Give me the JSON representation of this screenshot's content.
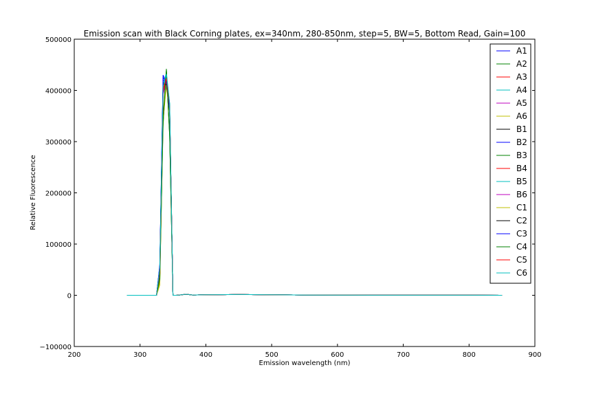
{
  "chart_data": {
    "type": "line",
    "title": "Emission scan with Black Corning plates, ex=340nm, 280-850nm, step=5, BW=5, Bottom Read, Gain=100",
    "xlabel": "Emission wavelength (nm)",
    "ylabel": "Relative Fluorescence",
    "xlim": [
      200,
      900
    ],
    "ylim": [
      -100000,
      500000
    ],
    "xticks": [
      200,
      300,
      400,
      500,
      600,
      700,
      800,
      900
    ],
    "yticks": [
      -100000,
      0,
      100000,
      200000,
      300000,
      400000,
      500000
    ],
    "grid": false,
    "legend_position": "top-right",
    "x": [
      280,
      325,
      330,
      335,
      340,
      345,
      350,
      355,
      360,
      370,
      380,
      400,
      450,
      500,
      550,
      600,
      650,
      700,
      750,
      800,
      850
    ],
    "series": [
      {
        "name": "A1",
        "color": "#0000ff",
        "values": [
          0,
          0,
          60000,
          430000,
          415000,
          360000,
          0,
          0,
          500,
          2000,
          500,
          1000,
          1500,
          1000,
          500,
          300,
          200,
          200,
          100,
          100,
          0
        ]
      },
      {
        "name": "A2",
        "color": "#008000",
        "values": [
          0,
          0,
          30000,
          330000,
          440000,
          310000,
          0,
          0,
          500,
          2000,
          500,
          1000,
          1500,
          1000,
          500,
          300,
          200,
          200,
          100,
          100,
          0
        ]
      },
      {
        "name": "A3",
        "color": "#ff0000",
        "values": [
          0,
          0,
          50000,
          400000,
          425000,
          370000,
          0,
          0,
          500,
          2000,
          500,
          1000,
          1500,
          1000,
          500,
          300,
          200,
          200,
          100,
          100,
          0
        ]
      },
      {
        "name": "A4",
        "color": "#00bfbf",
        "values": [
          0,
          0,
          55000,
          410000,
          435000,
          375000,
          0,
          0,
          500,
          2000,
          500,
          1000,
          1500,
          1000,
          500,
          300,
          200,
          200,
          100,
          100,
          0
        ]
      },
      {
        "name": "A5",
        "color": "#bf00bf",
        "values": [
          0,
          0,
          45000,
          395000,
          420000,
          365000,
          0,
          0,
          500,
          2000,
          500,
          1000,
          1500,
          1000,
          500,
          300,
          200,
          200,
          100,
          100,
          0
        ]
      },
      {
        "name": "A6",
        "color": "#bfbf00",
        "values": [
          0,
          0,
          20000,
          340000,
          410000,
          355000,
          0,
          0,
          500,
          2000,
          500,
          1000,
          1500,
          1000,
          500,
          300,
          200,
          200,
          100,
          100,
          0
        ]
      },
      {
        "name": "B1",
        "color": "#000000",
        "values": [
          0,
          0,
          52000,
          415000,
          410000,
          365000,
          0,
          0,
          500,
          2000,
          500,
          1000,
          1500,
          1000,
          500,
          300,
          200,
          200,
          100,
          100,
          0
        ]
      },
      {
        "name": "B2",
        "color": "#0000ff",
        "values": [
          0,
          0,
          58000,
          420000,
          418000,
          362000,
          0,
          0,
          500,
          2000,
          500,
          1000,
          1500,
          1000,
          500,
          300,
          200,
          200,
          100,
          100,
          0
        ]
      },
      {
        "name": "B3",
        "color": "#008000",
        "values": [
          0,
          0,
          35000,
          350000,
          438000,
          315000,
          0,
          0,
          500,
          2000,
          500,
          1000,
          1500,
          1000,
          500,
          300,
          200,
          200,
          100,
          100,
          0
        ]
      },
      {
        "name": "B4",
        "color": "#ff0000",
        "values": [
          0,
          0,
          48000,
          398000,
          422000,
          368000,
          0,
          0,
          500,
          2000,
          500,
          1000,
          1500,
          1000,
          500,
          300,
          200,
          200,
          100,
          100,
          0
        ]
      },
      {
        "name": "B5",
        "color": "#00bfbf",
        "values": [
          0,
          0,
          53000,
          405000,
          430000,
          372000,
          0,
          0,
          500,
          2000,
          500,
          1000,
          1500,
          1000,
          500,
          300,
          200,
          200,
          100,
          100,
          0
        ]
      },
      {
        "name": "B6",
        "color": "#bf00bf",
        "values": [
          0,
          0,
          46000,
          392000,
          417000,
          366000,
          0,
          0,
          500,
          2000,
          500,
          1000,
          1500,
          1000,
          500,
          300,
          200,
          200,
          100,
          100,
          0
        ]
      },
      {
        "name": "C1",
        "color": "#bfbf00",
        "values": [
          0,
          0,
          25000,
          345000,
          412000,
          358000,
          0,
          0,
          500,
          2000,
          500,
          1000,
          1500,
          1000,
          500,
          300,
          200,
          200,
          100,
          100,
          0
        ]
      },
      {
        "name": "C2",
        "color": "#000000",
        "values": [
          0,
          0,
          51000,
          412000,
          412000,
          363000,
          0,
          0,
          500,
          2000,
          500,
          1000,
          1500,
          1000,
          500,
          300,
          200,
          200,
          100,
          100,
          0
        ]
      },
      {
        "name": "C3",
        "color": "#0000ff",
        "values": [
          0,
          0,
          57000,
          425000,
          416000,
          361000,
          0,
          0,
          500,
          2000,
          500,
          1000,
          1500,
          1000,
          500,
          300,
          200,
          200,
          100,
          100,
          0
        ]
      },
      {
        "name": "C4",
        "color": "#008000",
        "values": [
          0,
          0,
          32000,
          340000,
          442000,
          312000,
          0,
          0,
          500,
          2000,
          500,
          1000,
          1500,
          1000,
          500,
          300,
          200,
          200,
          100,
          100,
          0
        ]
      },
      {
        "name": "C5",
        "color": "#ff0000",
        "values": [
          0,
          0,
          49000,
          402000,
          424000,
          369000,
          0,
          0,
          500,
          2000,
          500,
          1000,
          1500,
          1000,
          500,
          300,
          200,
          200,
          100,
          100,
          0
        ]
      },
      {
        "name": "C6",
        "color": "#00bfbf",
        "values": [
          0,
          0,
          54000,
          408000,
          432000,
          374000,
          0,
          0,
          500,
          2000,
          500,
          1000,
          1500,
          1000,
          500,
          300,
          200,
          200,
          100,
          100,
          0
        ]
      }
    ]
  }
}
